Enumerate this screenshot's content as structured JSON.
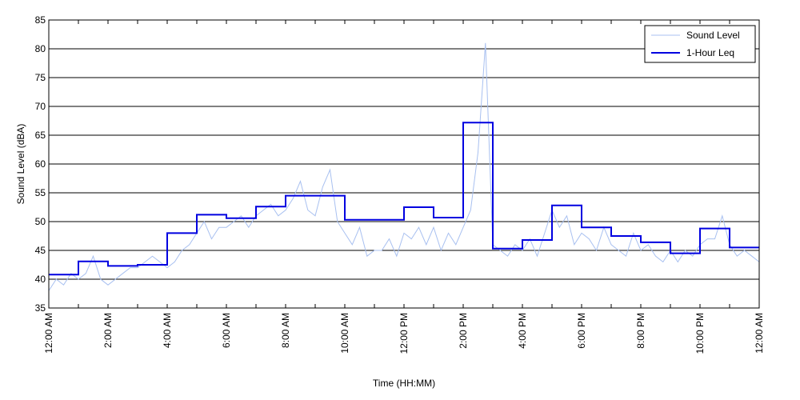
{
  "chart_data": {
    "type": "line",
    "title": "",
    "xlabel": "Time (HH:MM)",
    "ylabel": "Sound Level (dBA)",
    "ylim": [
      35,
      85
    ],
    "yticks": [
      35,
      40,
      45,
      50,
      55,
      60,
      65,
      70,
      75,
      80,
      85
    ],
    "xlim": [
      0,
      24
    ],
    "x_unit": "hours since 12:00 AM",
    "xticks": [
      {
        "value": 0,
        "label": "12:00 AM"
      },
      {
        "value": 2,
        "label": "2:00 AM"
      },
      {
        "value": 4,
        "label": "4:00 AM"
      },
      {
        "value": 6,
        "label": "6:00 AM"
      },
      {
        "value": 8,
        "label": "8:00 AM"
      },
      {
        "value": 10,
        "label": "10:00 AM"
      },
      {
        "value": 12,
        "label": "12:00 PM"
      },
      {
        "value": 14,
        "label": "2:00 PM"
      },
      {
        "value": 16,
        "label": "4:00 PM"
      },
      {
        "value": 18,
        "label": "6:00 PM"
      },
      {
        "value": 20,
        "label": "8:00 PM"
      },
      {
        "value": 22,
        "label": "10:00 PM"
      },
      {
        "value": 24,
        "label": "12:00 AM"
      }
    ],
    "grid": "horizontal",
    "legend_position": "top-right",
    "series": [
      {
        "name": "Sound Level",
        "style": "thin-line",
        "color": "#a8c0f0",
        "x": [
          0,
          0.25,
          0.5,
          0.75,
          1,
          1.25,
          1.5,
          1.75,
          2,
          2.25,
          2.5,
          2.75,
          3,
          3.25,
          3.5,
          3.75,
          4,
          4.25,
          4.5,
          4.75,
          5,
          5.25,
          5.5,
          5.75,
          6,
          6.25,
          6.5,
          6.75,
          7,
          7.25,
          7.5,
          7.75,
          8,
          8.25,
          8.5,
          8.75,
          9,
          9.25,
          9.5,
          9.75,
          10,
          10.25,
          10.5,
          10.75,
          11,
          11.25,
          11.5,
          11.75,
          12,
          12.25,
          12.5,
          12.75,
          13,
          13.25,
          13.5,
          13.75,
          14,
          14.25,
          14.5,
          14.75,
          15,
          15.25,
          15.5,
          15.75,
          16,
          16.25,
          16.5,
          16.75,
          17,
          17.25,
          17.5,
          17.75,
          18,
          18.25,
          18.5,
          18.75,
          19,
          19.25,
          19.5,
          19.75,
          20,
          20.25,
          20.5,
          20.75,
          21,
          21.25,
          21.5,
          21.75,
          22,
          22.25,
          22.5,
          22.75,
          23,
          23.25,
          23.5,
          23.75,
          24
        ],
        "y": [
          38,
          40,
          39,
          41,
          40,
          41,
          44,
          40,
          39,
          40,
          41,
          42,
          42,
          43,
          44,
          43,
          42,
          43,
          45,
          46,
          48,
          50,
          47,
          49,
          49,
          50,
          51,
          49,
          51,
          52,
          53,
          51,
          52,
          54,
          57,
          52,
          51,
          56,
          59,
          50,
          48,
          46,
          49,
          44,
          45,
          45,
          47,
          44,
          48,
          47,
          49,
          46,
          49,
          45,
          48,
          46,
          49,
          52,
          62,
          81,
          46,
          45,
          44,
          46,
          45,
          47,
          44,
          48,
          52,
          49,
          51,
          46,
          48,
          47,
          45,
          49,
          46,
          45,
          44,
          48,
          45,
          46,
          44,
          43,
          45,
          43,
          45,
          44,
          46,
          47,
          47,
          51,
          46,
          44,
          45,
          44,
          43
        ]
      },
      {
        "name": "1-Hour Leq",
        "style": "step",
        "color": "#0000e0",
        "x": [
          0,
          1,
          2,
          3,
          4,
          5,
          6,
          7,
          8,
          9,
          10,
          11,
          12,
          13,
          14,
          15,
          16,
          17,
          18,
          19,
          20,
          21,
          22,
          23
        ],
        "y": [
          40.8,
          43.1,
          42.3,
          42.5,
          48.0,
          51.2,
          50.6,
          52.6,
          54.5,
          54.5,
          50.3,
          50.3,
          52.5,
          50.7,
          67.2,
          45.3,
          46.8,
          52.8,
          49.0,
          47.5,
          46.4,
          44.5,
          48.8,
          45.5
        ]
      }
    ]
  }
}
